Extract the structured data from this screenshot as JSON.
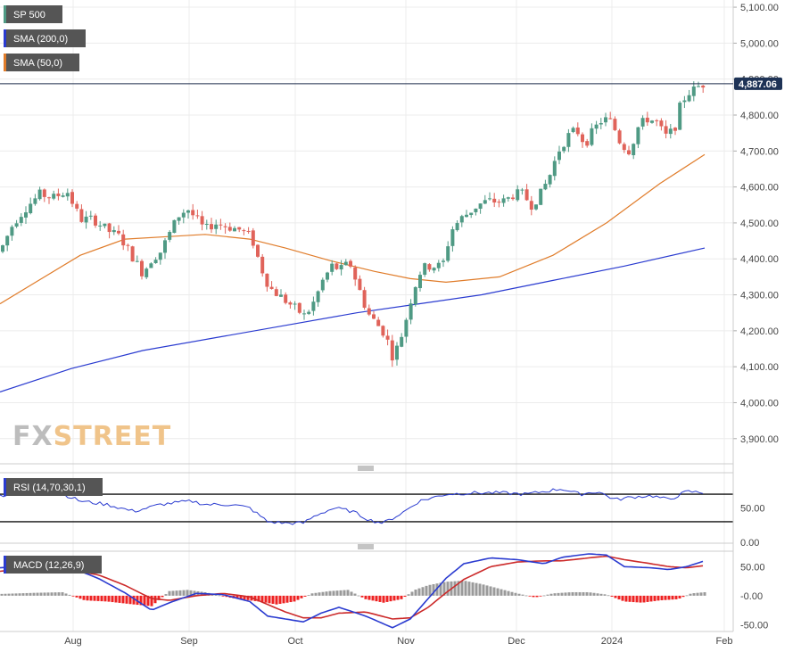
{
  "chart_data": [
    {
      "type": "candlestick",
      "series_labels": [
        "SP 500",
        "SMA (200,0)",
        "SMA (50,0)"
      ],
      "legend_colors": [
        "#4f9a84",
        "#2a3bd0",
        "#e07c2a"
      ],
      "price_label": "4,887.06",
      "y_range": [
        3830,
        5120
      ],
      "y_ticks": [
        3900,
        4000,
        4100,
        4200,
        4300,
        4400,
        4500,
        4600,
        4700,
        4800,
        4900,
        5000,
        5100
      ],
      "y_tick_labels": [
        "3,900.00",
        "4,000.00",
        "4,100.00",
        "4,200.00",
        "4,300.00",
        "4,400.00",
        "4,500.00",
        "4,600.00",
        "4,700.00",
        "4,800.00",
        "4,900.00",
        "5,000.00",
        "5,100.00"
      ],
      "sma200": [
        [
          0,
          4030
        ],
        [
          80,
          4095
        ],
        [
          160,
          4145
        ],
        [
          240,
          4180
        ],
        [
          320,
          4215
        ],
        [
          400,
          4250
        ],
        [
          470,
          4275
        ],
        [
          540,
          4300
        ],
        [
          620,
          4340
        ],
        [
          700,
          4380
        ],
        [
          790,
          4430
        ]
      ],
      "sma50": [
        [
          0,
          4275
        ],
        [
          40,
          4335
        ],
        [
          90,
          4410
        ],
        [
          140,
          4455
        ],
        [
          190,
          4462
        ],
        [
          230,
          4468
        ],
        [
          280,
          4455
        ],
        [
          320,
          4430
        ],
        [
          370,
          4395
        ],
        [
          420,
          4365
        ],
        [
          460,
          4345
        ],
        [
          500,
          4335
        ],
        [
          560,
          4350
        ],
        [
          620,
          4410
        ],
        [
          680,
          4500
        ],
        [
          740,
          4610
        ],
        [
          790,
          4690
        ]
      ],
      "price_path": [
        [
          0,
          4420
        ],
        [
          15,
          4500
        ],
        [
          30,
          4545
        ],
        [
          45,
          4580
        ],
        [
          60,
          4570
        ],
        [
          75,
          4590
        ],
        [
          90,
          4510
        ],
        [
          105,
          4510
        ],
        [
          120,
          4480
        ],
        [
          135,
          4460
        ],
        [
          150,
          4400
        ],
        [
          160,
          4360
        ],
        [
          170,
          4400
        ],
        [
          180,
          4420
        ],
        [
          190,
          4470
        ],
        [
          200,
          4520
        ],
        [
          210,
          4540
        ],
        [
          220,
          4510
        ],
        [
          230,
          4480
        ],
        [
          240,
          4500
        ],
        [
          255,
          4490
        ],
        [
          270,
          4480
        ],
        [
          282,
          4460
        ],
        [
          292,
          4380
        ],
        [
          302,
          4320
        ],
        [
          312,
          4300
        ],
        [
          322,
          4280
        ],
        [
          332,
          4260
        ],
        [
          342,
          4240
        ],
        [
          352,
          4280
        ],
        [
          362,
          4340
        ],
        [
          372,
          4380
        ],
        [
          382,
          4370
        ],
        [
          392,
          4390
        ],
        [
          402,
          4320
        ],
        [
          412,
          4250
        ],
        [
          422,
          4220
        ],
        [
          432,
          4190
        ],
        [
          440,
          4130
        ],
        [
          447,
          4160
        ],
        [
          455,
          4230
        ],
        [
          462,
          4300
        ],
        [
          470,
          4360
        ],
        [
          478,
          4380
        ],
        [
          486,
          4380
        ],
        [
          496,
          4380
        ],
        [
          506,
          4480
        ],
        [
          516,
          4510
        ],
        [
          526,
          4530
        ],
        [
          536,
          4550
        ],
        [
          546,
          4560
        ],
        [
          556,
          4560
        ],
        [
          566,
          4560
        ],
        [
          576,
          4580
        ],
        [
          586,
          4580
        ],
        [
          596,
          4550
        ],
        [
          606,
          4580
        ],
        [
          616,
          4630
        ],
        [
          626,
          4700
        ],
        [
          636,
          4740
        ],
        [
          646,
          4760
        ],
        [
          656,
          4720
        ],
        [
          666,
          4760
        ],
        [
          676,
          4790
        ],
        [
          686,
          4780
        ],
        [
          696,
          4720
        ],
        [
          706,
          4700
        ],
        [
          716,
          4770
        ],
        [
          726,
          4790
        ],
        [
          736,
          4780
        ],
        [
          746,
          4740
        ],
        [
          756,
          4760
        ],
        [
          762,
          4820
        ],
        [
          770,
          4860
        ],
        [
          778,
          4870
        ],
        [
          786,
          4885
        ],
        [
          790,
          4887
        ]
      ]
    },
    {
      "type": "line",
      "label": "RSI (14,70,30,1)",
      "y_ticks": [
        0,
        50
      ],
      "y_tick_labels": [
        "0.00",
        "50.00"
      ],
      "levels": [
        30,
        70
      ],
      "y_range": [
        0,
        100
      ],
      "values": [
        [
          0,
          68
        ],
        [
          30,
          75
        ],
        [
          60,
          76
        ],
        [
          90,
          60
        ],
        [
          120,
          55
        ],
        [
          150,
          45
        ],
        [
          165,
          50
        ],
        [
          180,
          55
        ],
        [
          200,
          58
        ],
        [
          215,
          60
        ],
        [
          230,
          55
        ],
        [
          260,
          55
        ],
        [
          280,
          50
        ],
        [
          300,
          30
        ],
        [
          320,
          28
        ],
        [
          340,
          28
        ],
        [
          355,
          40
        ],
        [
          375,
          50
        ],
        [
          395,
          45
        ],
        [
          415,
          32
        ],
        [
          430,
          28
        ],
        [
          450,
          42
        ],
        [
          470,
          60
        ],
        [
          500,
          70
        ],
        [
          530,
          72
        ],
        [
          560,
          72
        ],
        [
          590,
          70
        ],
        [
          610,
          74
        ],
        [
          630,
          78
        ],
        [
          650,
          70
        ],
        [
          670,
          74
        ],
        [
          690,
          62
        ],
        [
          710,
          66
        ],
        [
          730,
          68
        ],
        [
          750,
          62
        ],
        [
          770,
          74
        ],
        [
          790,
          72
        ]
      ]
    },
    {
      "type": "macd",
      "label": "MACD (12,26,9)",
      "y_ticks": [
        50,
        0,
        -50
      ],
      "y_tick_labels": [
        "50.00",
        "-0.00",
        "-50.00"
      ],
      "y_range": [
        -60,
        75
      ],
      "macd": [
        [
          0,
          48
        ],
        [
          40,
          52
        ],
        [
          80,
          48
        ],
        [
          110,
          30
        ],
        [
          140,
          5
        ],
        [
          170,
          -25
        ],
        [
          190,
          -12
        ],
        [
          220,
          4
        ],
        [
          250,
          2
        ],
        [
          280,
          -10
        ],
        [
          300,
          -35
        ],
        [
          320,
          -40
        ],
        [
          340,
          -45
        ],
        [
          360,
          -30
        ],
        [
          380,
          -20
        ],
        [
          410,
          -35
        ],
        [
          440,
          -55
        ],
        [
          460,
          -40
        ],
        [
          480,
          -5
        ],
        [
          500,
          30
        ],
        [
          520,
          55
        ],
        [
          550,
          65
        ],
        [
          580,
          62
        ],
        [
          610,
          55
        ],
        [
          630,
          66
        ],
        [
          660,
          72
        ],
        [
          680,
          70
        ],
        [
          700,
          50
        ],
        [
          730,
          48
        ],
        [
          750,
          45
        ],
        [
          770,
          50
        ],
        [
          790,
          60
        ]
      ],
      "signal": [
        [
          0,
          42
        ],
        [
          40,
          48
        ],
        [
          80,
          44
        ],
        [
          110,
          36
        ],
        [
          140,
          18
        ],
        [
          170,
          -5
        ],
        [
          190,
          -8
        ],
        [
          220,
          0
        ],
        [
          250,
          4
        ],
        [
          280,
          -2
        ],
        [
          300,
          -15
        ],
        [
          320,
          -28
        ],
        [
          340,
          -38
        ],
        [
          360,
          -38
        ],
        [
          380,
          -30
        ],
        [
          410,
          -28
        ],
        [
          440,
          -40
        ],
        [
          460,
          -38
        ],
        [
          480,
          -20
        ],
        [
          500,
          5
        ],
        [
          520,
          28
        ],
        [
          550,
          50
        ],
        [
          580,
          58
        ],
        [
          610,
          60
        ],
        [
          630,
          60
        ],
        [
          660,
          65
        ],
        [
          680,
          68
        ],
        [
          700,
          62
        ],
        [
          730,
          55
        ],
        [
          750,
          50
        ],
        [
          770,
          48
        ],
        [
          790,
          52
        ]
      ],
      "histogram": [
        [
          0,
          3
        ],
        [
          40,
          5
        ],
        [
          70,
          6
        ],
        [
          95,
          -8
        ],
        [
          120,
          -10
        ],
        [
          150,
          -15
        ],
        [
          170,
          -18
        ],
        [
          190,
          8
        ],
        [
          210,
          10
        ],
        [
          230,
          6
        ],
        [
          260,
          -4
        ],
        [
          290,
          -10
        ],
        [
          310,
          -15
        ],
        [
          330,
          -10
        ],
        [
          350,
          4
        ],
        [
          370,
          8
        ],
        [
          390,
          10
        ],
        [
          410,
          -6
        ],
        [
          430,
          -12
        ],
        [
          450,
          -6
        ],
        [
          465,
          10
        ],
        [
          480,
          18
        ],
        [
          500,
          24
        ],
        [
          520,
          26
        ],
        [
          540,
          20
        ],
        [
          560,
          12
        ],
        [
          580,
          4
        ],
        [
          600,
          -3
        ],
        [
          620,
          4
        ],
        [
          640,
          6
        ],
        [
          660,
          6
        ],
        [
          680,
          2
        ],
        [
          700,
          -10
        ],
        [
          720,
          -12
        ],
        [
          740,
          -8
        ],
        [
          760,
          -6
        ],
        [
          775,
          4
        ],
        [
          790,
          6
        ]
      ]
    }
  ],
  "x_axis": {
    "ticks": [
      "Aug",
      "Sep",
      "Oct",
      "Nov",
      "Dec",
      "2024",
      "Feb"
    ],
    "positions": [
      82,
      212,
      331,
      455,
      579,
      686,
      812
    ]
  },
  "watermark": {
    "fx": "FX",
    "street": "STREET"
  },
  "colors": {
    "up": "#4f9a84",
    "down": "#e0635a",
    "rsi": "#2a3bd0",
    "macd": "#2a3bd0",
    "signal": "#cc2a2a",
    "hist_pos": "#9a9a9a",
    "hist_neg": "#ee2222"
  }
}
